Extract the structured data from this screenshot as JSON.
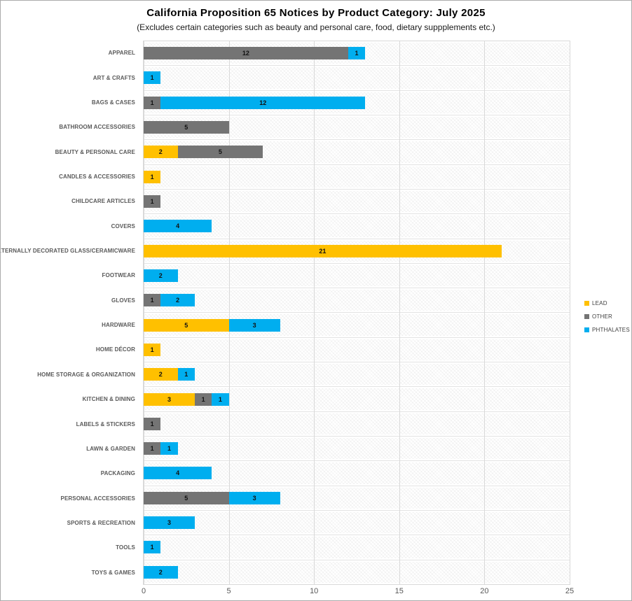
{
  "title": "California Proposition 65 Notices by Product Category: July 2025",
  "subtitle": "(Excludes certain categories such as beauty and personal care, food, dietary suppplements etc.)",
  "chart_data": {
    "type": "bar",
    "orientation": "horizontal",
    "stacked": true,
    "title": "California Proposition 65 Notices by Product Category: July 2025",
    "subtitle": "(Excludes certain categories such as beauty and personal care, food, dietary suppplements etc.)",
    "xlabel": "",
    "ylabel": "",
    "xlim": [
      0,
      25
    ],
    "x_ticks": [
      0,
      5,
      10,
      15,
      20,
      25
    ],
    "grid": true,
    "legend_position": "right",
    "categories": [
      "APPAREL",
      "ART & CRAFTS",
      "BAGS & CASES",
      "BATHROOM ACCESSORIES",
      "BEAUTY & PERSONAL CARE",
      "CANDLES & ACCESSORIES",
      "CHILDCARE ARTICLES",
      "COVERS",
      "EXTERNALLY DECORATED GLASS/CERAMICWARE",
      "FOOTWEAR",
      "GLOVES",
      "HARDWARE",
      "HOME DÉCOR",
      "HOME STORAGE & ORGANIZATION",
      "KITCHEN & DINING",
      "LABELS & STICKERS",
      "LAWN & GARDEN",
      "PACKAGING",
      "PERSONAL ACCESSORIES",
      "SPORTS & RECREATION",
      "TOOLS",
      "TOYS & GAMES"
    ],
    "series": [
      {
        "name": "LEAD",
        "color": "#FFC000",
        "values": [
          0,
          0,
          0,
          0,
          2,
          1,
          0,
          0,
          21,
          0,
          0,
          5,
          1,
          2,
          3,
          0,
          0,
          0,
          0,
          0,
          0,
          0
        ]
      },
      {
        "name": "OTHER",
        "color": "#747474",
        "values": [
          12,
          0,
          1,
          5,
          5,
          0,
          1,
          0,
          0,
          0,
          1,
          0,
          0,
          0,
          1,
          1,
          1,
          0,
          5,
          0,
          0,
          0
        ]
      },
      {
        "name": "PHTHALATES",
        "color": "#00AEEF",
        "values": [
          1,
          1,
          12,
          0,
          0,
          0,
          0,
          4,
          0,
          2,
          2,
          3,
          0,
          1,
          1,
          0,
          1,
          4,
          3,
          3,
          1,
          2
        ]
      }
    ],
    "colors": {
      "gridline": "#d9d9d9",
      "axis_label": "#595959",
      "category_label": "#595959",
      "data_label": "#111111"
    }
  }
}
